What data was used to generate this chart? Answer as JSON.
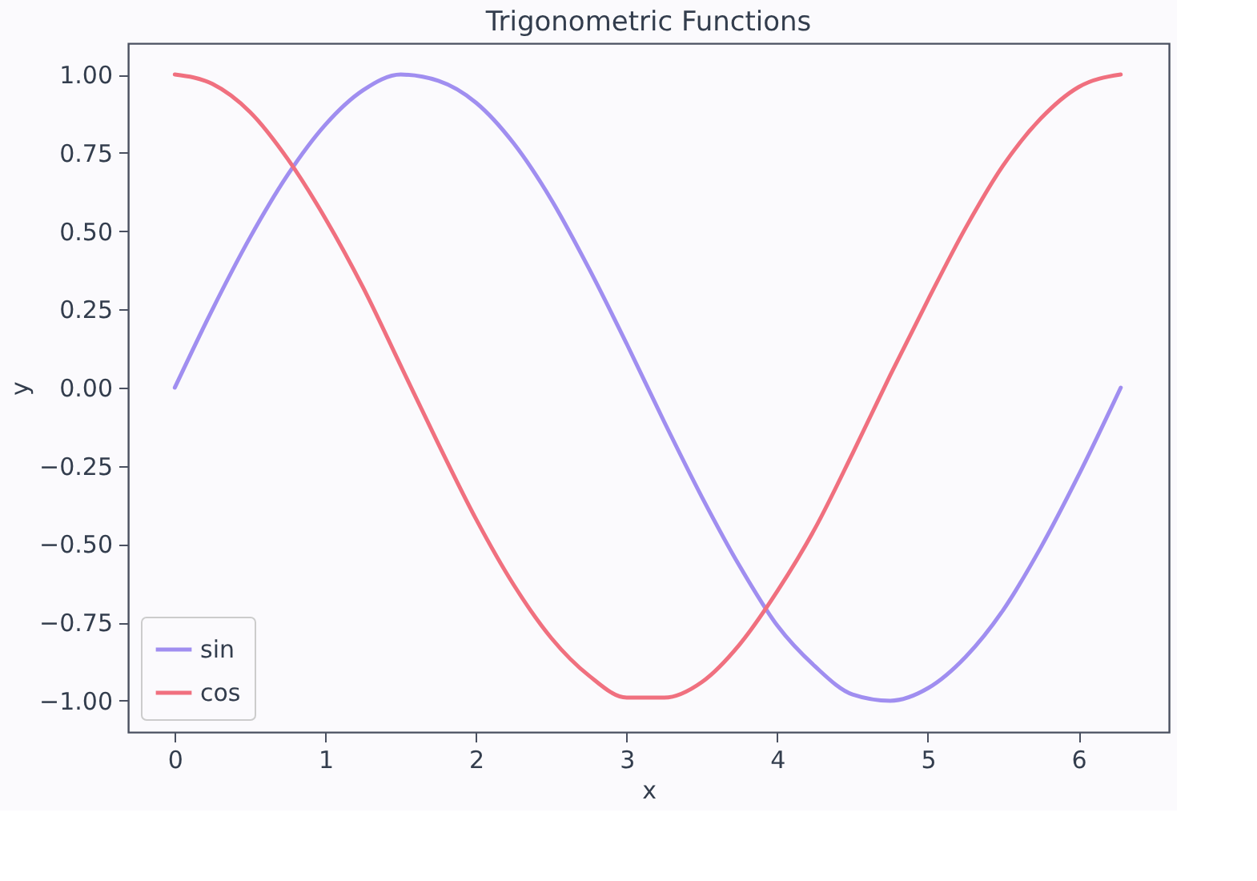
{
  "chart_data": {
    "type": "line",
    "title": "Trigonometric Functions",
    "xlabel": "x",
    "ylabel": "y",
    "x": [
      0,
      0.25,
      0.5,
      0.75,
      1,
      1.25,
      1.5,
      1.75,
      2,
      2.25,
      2.5,
      2.75,
      3,
      3.25,
      3.5,
      3.75,
      4,
      4.25,
      4.5,
      4.75,
      5,
      5.25,
      5.5,
      5.75,
      6,
      6.28
    ],
    "series": [
      {
        "name": "sin",
        "color": "#a08ef0",
        "values": [
          0,
          0.25,
          0.48,
          0.68,
          0.84,
          0.95,
          1.0,
          0.98,
          0.91,
          0.78,
          0.6,
          0.38,
          0.14,
          -0.11,
          -0.35,
          -0.57,
          -0.76,
          -0.89,
          -0.98,
          -1.0,
          -0.96,
          -0.86,
          -0.71,
          -0.51,
          -0.28,
          0
        ]
      },
      {
        "name": "cos",
        "color": "#f0707f",
        "values": [
          1,
          0.97,
          0.88,
          0.73,
          0.54,
          0.32,
          0.07,
          -0.18,
          -0.42,
          -0.63,
          -0.8,
          -0.92,
          -0.99,
          -0.99,
          -0.94,
          -0.82,
          -0.65,
          -0.45,
          -0.21,
          0.04,
          0.28,
          0.51,
          0.71,
          0.86,
          0.96,
          1
        ]
      }
    ],
    "xlim": [
      -0.31,
      6.6
    ],
    "xticks": [
      0,
      1,
      2,
      3,
      4,
      5,
      6
    ],
    "ylim": [
      -1.1,
      1.1
    ],
    "yticks": [
      {
        "value": -1,
        "label": "−1.00"
      },
      {
        "value": -0.75,
        "label": "−0.75"
      },
      {
        "value": -0.5,
        "label": "−0.50"
      },
      {
        "value": -0.25,
        "label": "−0.25"
      },
      {
        "value": 0,
        "label": "0.00"
      },
      {
        "value": 0.25,
        "label": "0.25"
      },
      {
        "value": 0.5,
        "label": "0.50"
      },
      {
        "value": 0.75,
        "label": "0.75"
      },
      {
        "value": 1,
        "label": "1.00"
      }
    ],
    "grid": false,
    "legend": "bottom left",
    "marker": "none",
    "line_style": "solid"
  }
}
